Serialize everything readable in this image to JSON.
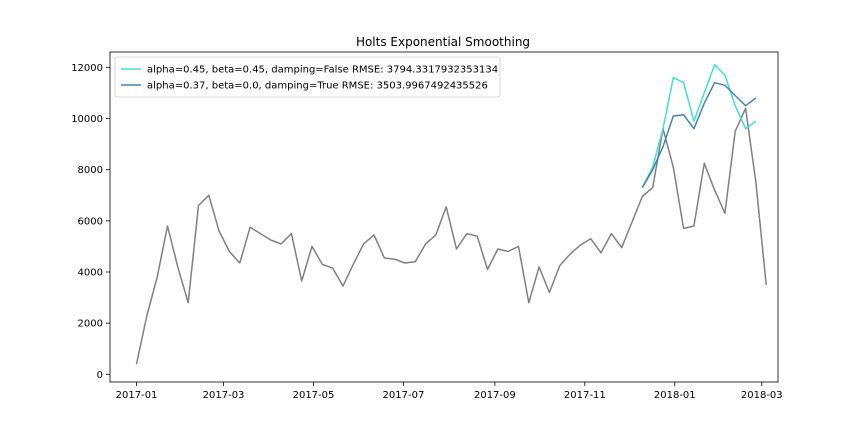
{
  "chart_data": {
    "type": "line",
    "title": "Holts Exponential Smoothing",
    "xlabel": "",
    "ylabel": "",
    "xlim": [
      "2016-12-14",
      "2018-03-12"
    ],
    "ylim": [
      -300,
      12600
    ],
    "x_ticks": [
      "2017-01",
      "2017-03",
      "2017-05",
      "2017-07",
      "2017-09",
      "2017-11",
      "2018-01",
      "2018-03"
    ],
    "y_ticks": [
      0,
      2000,
      4000,
      6000,
      8000,
      10000,
      12000
    ],
    "legend": {
      "placement": "top-left"
    },
    "grid": false,
    "series": [
      {
        "name": "alpha=0.45, beta=0.45, damping=False RMSE: 3794.3317932353134",
        "color": "#40e0d0",
        "points": [
          [
            "2017-12-10",
            7300
          ],
          [
            "2017-12-17",
            8100
          ],
          [
            "2017-12-24",
            9600
          ],
          [
            "2017-12-31",
            11600
          ],
          [
            "2018-01-07",
            11400
          ],
          [
            "2018-01-14",
            9900
          ],
          [
            "2018-01-21",
            11000
          ],
          [
            "2018-01-28",
            12100
          ],
          [
            "2018-02-04",
            11700
          ],
          [
            "2018-02-11",
            10500
          ],
          [
            "2018-02-18",
            9600
          ],
          [
            "2018-02-25",
            9900
          ]
        ]
      },
      {
        "name": "alpha=0.37, beta=0.0, damping=True RMSE: 3503.9967492435526",
        "color": "#4682b4",
        "points": [
          [
            "2017-12-10",
            7300
          ],
          [
            "2017-12-17",
            8000
          ],
          [
            "2017-12-24",
            8900
          ],
          [
            "2017-12-31",
            10100
          ],
          [
            "2018-01-07",
            10150
          ],
          [
            "2018-01-14",
            9600
          ],
          [
            "2018-01-21",
            10600
          ],
          [
            "2018-01-28",
            11400
          ],
          [
            "2018-02-04",
            11300
          ],
          [
            "2018-02-11",
            10900
          ],
          [
            "2018-02-18",
            10500
          ],
          [
            "2018-02-25",
            10800
          ]
        ]
      },
      {
        "name": "",
        "color": "#808080",
        "points": [
          [
            "2017-01-01",
            400
          ],
          [
            "2017-01-08",
            2300
          ],
          [
            "2017-01-15",
            3800
          ],
          [
            "2017-01-22",
            5800
          ],
          [
            "2017-01-29",
            4200
          ],
          [
            "2017-02-05",
            2800
          ],
          [
            "2017-02-12",
            6600
          ],
          [
            "2017-02-19",
            7000
          ],
          [
            "2017-02-26",
            5600
          ],
          [
            "2017-03-05",
            4800
          ],
          [
            "2017-03-12",
            4350
          ],
          [
            "2017-03-19",
            5750
          ],
          [
            "2017-03-26",
            5500
          ],
          [
            "2017-04-02",
            5250
          ],
          [
            "2017-04-09",
            5100
          ],
          [
            "2017-04-16",
            5500
          ],
          [
            "2017-04-23",
            3650
          ],
          [
            "2017-04-30",
            5000
          ],
          [
            "2017-05-07",
            4300
          ],
          [
            "2017-05-14",
            4150
          ],
          [
            "2017-05-21",
            3450
          ],
          [
            "2017-05-28",
            4300
          ],
          [
            "2017-06-04",
            5100
          ],
          [
            "2017-06-11",
            5450
          ],
          [
            "2017-06-18",
            4550
          ],
          [
            "2017-06-25",
            4500
          ],
          [
            "2017-07-02",
            4350
          ],
          [
            "2017-07-09",
            4400
          ],
          [
            "2017-07-16",
            5100
          ],
          [
            "2017-07-23",
            5450
          ],
          [
            "2017-07-30",
            6550
          ],
          [
            "2017-08-06",
            4900
          ],
          [
            "2017-08-13",
            5500
          ],
          [
            "2017-08-20",
            5400
          ],
          [
            "2017-08-27",
            4100
          ],
          [
            "2017-09-03",
            4900
          ],
          [
            "2017-09-10",
            4800
          ],
          [
            "2017-09-17",
            5000
          ],
          [
            "2017-09-24",
            2800
          ],
          [
            "2017-10-01",
            4200
          ],
          [
            "2017-10-08",
            3200
          ],
          [
            "2017-10-15",
            4250
          ],
          [
            "2017-10-22",
            4700
          ],
          [
            "2017-10-29",
            5050
          ],
          [
            "2017-11-05",
            5300
          ],
          [
            "2017-11-12",
            4750
          ],
          [
            "2017-11-19",
            5500
          ],
          [
            "2017-11-26",
            4950
          ],
          [
            "2017-12-03",
            5950
          ],
          [
            "2017-12-10",
            6950
          ],
          [
            "2017-12-17",
            7300
          ],
          [
            "2017-12-24",
            9600
          ],
          [
            "2017-12-31",
            8100
          ],
          [
            "2018-01-07",
            5700
          ],
          [
            "2018-01-14",
            5800
          ],
          [
            "2018-01-21",
            8250
          ],
          [
            "2018-01-28",
            7200
          ],
          [
            "2018-02-04",
            6300
          ],
          [
            "2018-02-11",
            9500
          ],
          [
            "2018-02-18",
            10400
          ],
          [
            "2018-02-25",
            7500
          ],
          [
            "2018-03-04",
            3500
          ]
        ]
      }
    ]
  }
}
